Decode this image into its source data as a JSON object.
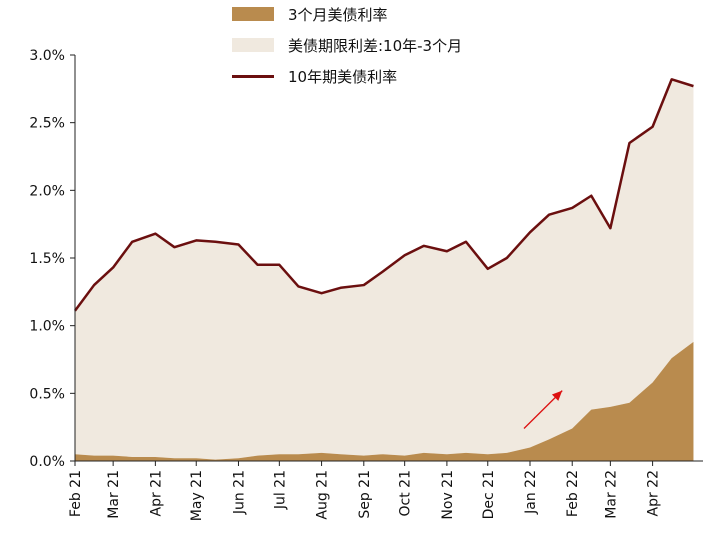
{
  "chart_data": {
    "type": "area",
    "y_unit": "%",
    "ylim": [
      0,
      3.0
    ],
    "y_ticks": [
      "0.0%",
      "0.5%",
      "1.0%",
      "1.5%",
      "2.0%",
      "2.5%",
      "3.0%"
    ],
    "x_ticks": [
      "Feb 21",
      "Mar 21",
      "Apr 21",
      "May 21",
      "Jun 21",
      "Jul 21",
      "Aug 21",
      "Sep 21",
      "Oct 21",
      "Nov 21",
      "Dec 21",
      "Jan 22",
      "Feb 22",
      "Mar 22",
      "Apr 22"
    ],
    "x": [
      "2021-02-01",
      "2021-02-15",
      "2021-03-01",
      "2021-03-15",
      "2021-04-01",
      "2021-04-15",
      "2021-05-01",
      "2021-05-15",
      "2021-06-01",
      "2021-06-15",
      "2021-07-01",
      "2021-07-15",
      "2021-08-01",
      "2021-08-15",
      "2021-09-01",
      "2021-09-15",
      "2021-10-01",
      "2021-10-15",
      "2021-11-01",
      "2021-11-15",
      "2021-12-01",
      "2021-12-15",
      "2022-01-01",
      "2022-01-15",
      "2022-02-01",
      "2022-02-15",
      "2022-03-01",
      "2022-03-15",
      "2022-04-01",
      "2022-04-15",
      "2022-05-01"
    ],
    "series": [
      {
        "name": "3个月美债利率",
        "color": "#b98b4e",
        "values": [
          0.05,
          0.04,
          0.04,
          0.03,
          0.03,
          0.02,
          0.02,
          0.01,
          0.02,
          0.04,
          0.05,
          0.05,
          0.06,
          0.05,
          0.04,
          0.05,
          0.04,
          0.06,
          0.05,
          0.06,
          0.05,
          0.06,
          0.1,
          0.16,
          0.24,
          0.38,
          0.4,
          0.43,
          0.58,
          0.76,
          0.88
        ]
      },
      {
        "name": "美债期限利差:10年-3个月",
        "color": "#f0e9df",
        "values": [
          1.06,
          1.26,
          1.39,
          1.59,
          1.65,
          1.56,
          1.61,
          1.61,
          1.58,
          1.41,
          1.4,
          1.24,
          1.18,
          1.23,
          1.26,
          1.35,
          1.48,
          1.53,
          1.5,
          1.56,
          1.37,
          1.44,
          1.59,
          1.66,
          1.63,
          1.58,
          1.32,
          1.92,
          1.89,
          2.06,
          1.89
        ]
      },
      {
        "name": "10年期美债利率",
        "color": "#6b0f0f",
        "values": [
          1.11,
          1.3,
          1.43,
          1.62,
          1.68,
          1.58,
          1.63,
          1.62,
          1.6,
          1.45,
          1.45,
          1.29,
          1.24,
          1.28,
          1.3,
          1.4,
          1.52,
          1.59,
          1.55,
          1.62,
          1.42,
          1.5,
          1.69,
          1.82,
          1.87,
          1.96,
          1.72,
          2.35,
          2.47,
          2.82,
          2.77
        ]
      }
    ],
    "legend_placement": "top",
    "grid": false
  }
}
